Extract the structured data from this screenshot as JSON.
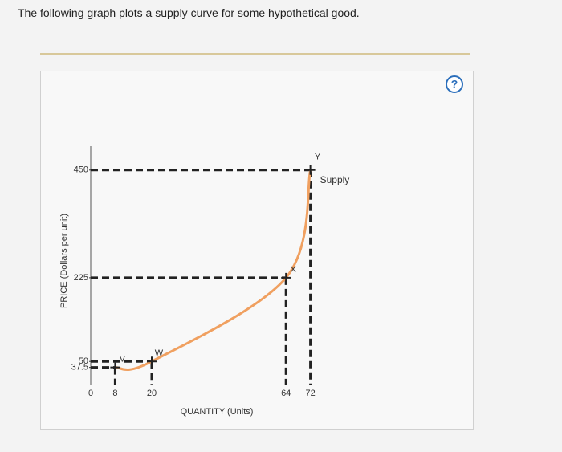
{
  "header": {
    "title": "The following graph plots a supply curve for some hypothetical good."
  },
  "help_icon": "?",
  "chart_data": {
    "type": "line",
    "xlabel": "QUANTITY (Units)",
    "ylabel": "PRICE (Dollars per unit)",
    "x": [
      8,
      20,
      64,
      72
    ],
    "series": [
      {
        "name": "Supply",
        "color": "#f0a060",
        "values": [
          37.5,
          50,
          225,
          450
        ],
        "point_labels": [
          "V",
          "W",
          "X",
          "Y"
        ]
      }
    ],
    "xlim": [
      0,
      80
    ],
    "xticks": [
      0,
      8,
      20,
      64,
      72
    ],
    "ylim": [
      0,
      500
    ],
    "yticks": [
      37.5,
      50,
      225,
      450
    ]
  }
}
